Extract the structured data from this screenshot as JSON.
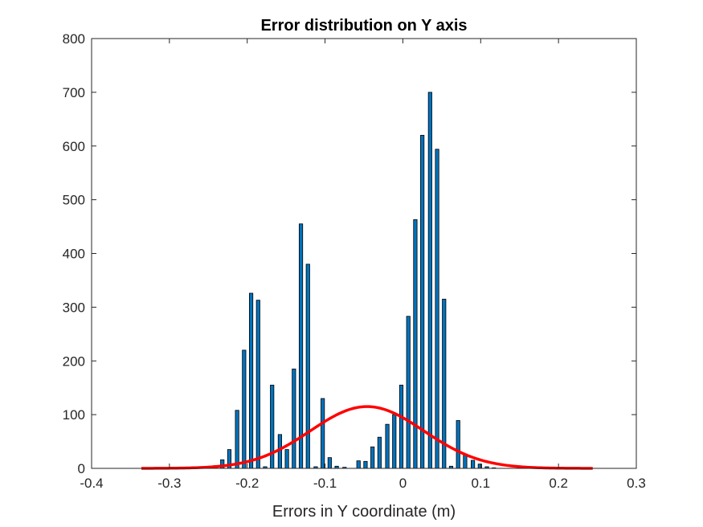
{
  "chart_data": {
    "type": "bar",
    "title": "Error distribution on Y axis",
    "xlabel": "Errors in Y coordinate (m)",
    "ylabel": "",
    "xlim": [
      -0.4,
      0.3
    ],
    "ylim": [
      0,
      800
    ],
    "xticks": [
      "-0.4",
      "-0.3",
      "-0.2",
      "-0.1",
      "0",
      "0.1",
      "0.2",
      "0.3"
    ],
    "yticks": [
      "0",
      "100",
      "200",
      "300",
      "400",
      "500",
      "600",
      "700",
      "800"
    ],
    "grid": false,
    "bar_color": "#0072BD",
    "bar_edge_color": "#000000",
    "bar_width": 0.0045,
    "series": [
      {
        "type": "histogram",
        "x": [
          -0.241,
          -0.232,
          -0.223,
          -0.213,
          -0.204,
          -0.195,
          -0.186,
          -0.177,
          -0.168,
          -0.158,
          -0.149,
          -0.14,
          -0.131,
          -0.122,
          -0.112,
          -0.103,
          -0.094,
          -0.085,
          -0.075,
          -0.066,
          -0.057,
          -0.048,
          -0.039,
          -0.03,
          -0.02,
          -0.011,
          -0.002,
          0.007,
          0.016,
          0.025,
          0.035,
          0.044,
          0.053,
          0.062,
          0.071,
          0.08,
          0.09,
          0.099,
          0.108,
          0.117
        ],
        "values": [
          5,
          16,
          35,
          108,
          220,
          326,
          313,
          3,
          155,
          63,
          35,
          185,
          455,
          380,
          3,
          130,
          20,
          4,
          2,
          0,
          14,
          13,
          40,
          58,
          82,
          100,
          155,
          283,
          463,
          620,
          700,
          594,
          315,
          4,
          89,
          27,
          15,
          8,
          3,
          1
        ]
      },
      {
        "type": "line",
        "description": "normal fit",
        "color": "#FF0000",
        "mean": -0.046,
        "std": 0.073,
        "peak": 115,
        "x_range": [
          -0.336,
          0.244
        ]
      }
    ]
  }
}
